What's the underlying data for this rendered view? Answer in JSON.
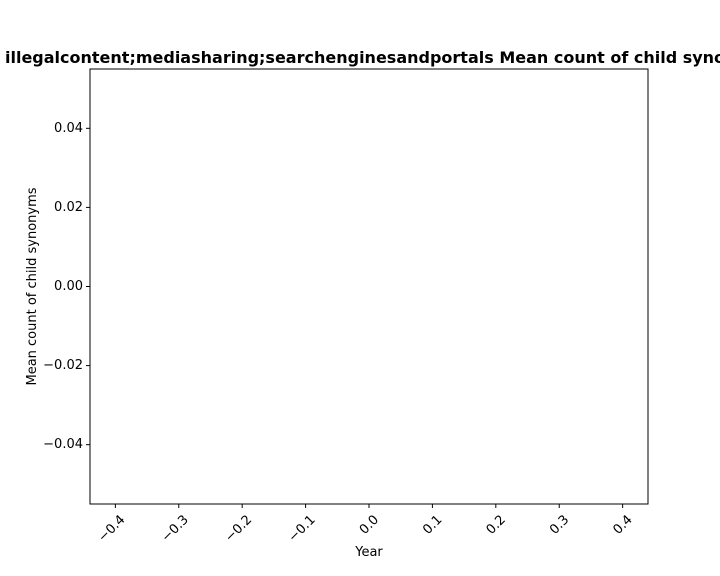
{
  "chart_data": {
    "type": "line",
    "title": "illegalcontent;mediasharing;searchenginesandportals Mean count of child synonyms",
    "xlabel": "Year",
    "ylabel": "Mean count of child synonyms",
    "x": [],
    "series": [],
    "xlim": [
      -0.44,
      0.44
    ],
    "ylim": [
      -0.055,
      0.055
    ],
    "xticks": [
      -0.4,
      -0.3,
      -0.2,
      -0.1,
      0.0,
      0.1,
      0.2,
      0.3,
      0.4
    ],
    "xtick_labels": [
      "−0.4",
      "−0.3",
      "−0.2",
      "−0.1",
      "0.0",
      "0.1",
      "0.2",
      "0.3",
      "0.4"
    ],
    "yticks": [
      -0.04,
      -0.02,
      0.0,
      0.02,
      0.04
    ],
    "ytick_labels": [
      "−0.04",
      "−0.02",
      "0.00",
      "0.02",
      "0.04"
    ],
    "xtick_rotation": 45,
    "grid": false,
    "legend": false
  }
}
